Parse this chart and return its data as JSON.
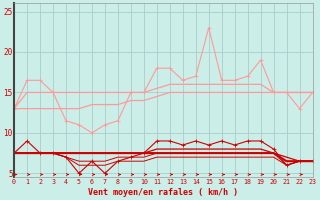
{
  "bg_color": "#cceee8",
  "grid_color": "#aacccc",
  "line_color_light": "#ff9999",
  "line_color_dark": "#cc0000",
  "arrow_color": "#cc0000",
  "xlabel": "Vent moyen/en rafales ( km/h )",
  "xlabel_color": "#cc0000",
  "yticks": [
    5,
    10,
    15,
    20,
    25
  ],
  "xticks": [
    0,
    1,
    2,
    3,
    4,
    5,
    6,
    7,
    8,
    9,
    10,
    11,
    12,
    13,
    14,
    15,
    16,
    17,
    18,
    19,
    20,
    21,
    22,
    23
  ],
  "xlim": [
    0,
    23
  ],
  "ylim": [
    4.5,
    26
  ],
  "x": [
    0,
    1,
    2,
    3,
    4,
    5,
    6,
    7,
    8,
    9,
    10,
    11,
    12,
    13,
    14,
    15,
    16,
    17,
    18,
    19,
    20,
    21,
    22,
    23
  ],
  "line1_y": [
    13,
    16.5,
    16.5,
    15,
    11.5,
    11,
    10,
    11,
    11.5,
    15,
    15,
    18,
    18,
    16.5,
    17,
    23,
    16.5,
    16.5,
    17,
    19,
    15,
    15,
    13,
    15
  ],
  "line2_y": [
    13,
    15,
    15,
    15,
    15,
    15,
    15,
    15,
    15,
    15,
    15,
    15.5,
    16,
    16,
    16,
    16,
    16,
    16,
    16,
    16,
    15,
    15,
    15,
    15
  ],
  "line3_y": [
    13,
    13,
    13,
    13,
    13,
    13,
    13.5,
    13.5,
    13.5,
    14,
    14,
    14.5,
    15,
    15,
    15,
    15,
    15,
    15,
    15,
    15,
    15,
    15,
    15,
    15
  ],
  "line4_y": [
    7.5,
    9,
    7.5,
    7.5,
    7,
    5,
    6.5,
    5,
    6.5,
    7,
    7.5,
    9,
    9,
    8.5,
    9,
    8.5,
    9,
    8.5,
    9,
    9,
    8,
    6,
    6.5,
    6.5
  ],
  "line5_y": [
    7.5,
    7.5,
    7.5,
    7.5,
    7.5,
    7.5,
    7.5,
    7.5,
    7.5,
    7.5,
    7.5,
    8,
    8,
    8,
    8,
    8,
    8,
    8,
    8,
    8,
    7.5,
    7,
    6.5,
    6.5
  ],
  "line6_y": [
    7.5,
    7.5,
    7.5,
    7.5,
    7.5,
    7.5,
    7.5,
    7.5,
    7.5,
    7.5,
    7.5,
    7.5,
    7.5,
    7.5,
    7.5,
    7.5,
    7.5,
    7.5,
    7.5,
    7.5,
    7.5,
    6.5,
    6.5,
    6.5
  ],
  "line7_y": [
    7.5,
    7.5,
    7.5,
    7.5,
    7,
    6.5,
    6.5,
    6.5,
    7,
    7,
    7,
    7.5,
    7.5,
    7.5,
    7.5,
    7.5,
    7.5,
    7.5,
    7.5,
    7.5,
    7.5,
    6,
    6.5,
    6.5
  ],
  "line8_y": [
    7.5,
    7.5,
    7.5,
    7.5,
    7,
    6,
    6,
    6,
    6.5,
    6.5,
    6.5,
    7,
    7,
    7,
    7,
    7,
    7,
    7,
    7,
    7,
    7,
    6,
    6.5,
    6.5
  ]
}
